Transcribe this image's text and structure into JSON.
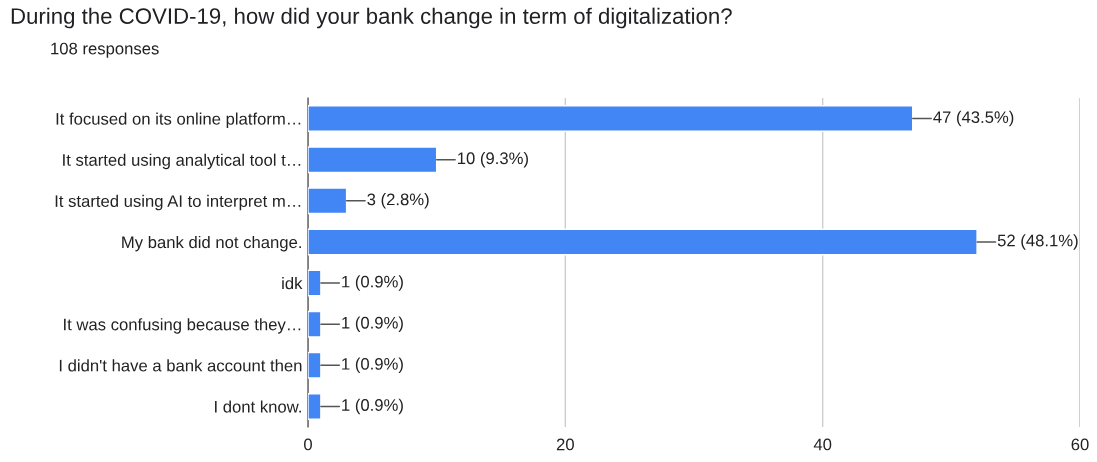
{
  "chart_data": {
    "type": "bar",
    "orientation": "horizontal",
    "title": "During the COVID-19, how did your bank change in term of digitalization?",
    "subtitle": "108 responses",
    "categories": [
      "It focused on its online platform…",
      "It started using analytical tool t…",
      "It started using AI to interpret m…",
      "My bank did not change.",
      "idk",
      "It was confusing because they…",
      "I didn't have a bank account then",
      "I dont know."
    ],
    "values": [
      47,
      10,
      3,
      52,
      1,
      1,
      1,
      1
    ],
    "value_labels": [
      "47 (43.5%)",
      "10 (9.3%)",
      "3 (2.8%)",
      "52 (48.1%)",
      "1 (0.9%)",
      "1 (0.9%)",
      "1 (0.9%)",
      "1 (0.9%)"
    ],
    "color": "#4285f4",
    "xlim": [
      0,
      60
    ],
    "xticks": [
      0,
      20,
      40,
      60
    ],
    "grid": "x"
  }
}
